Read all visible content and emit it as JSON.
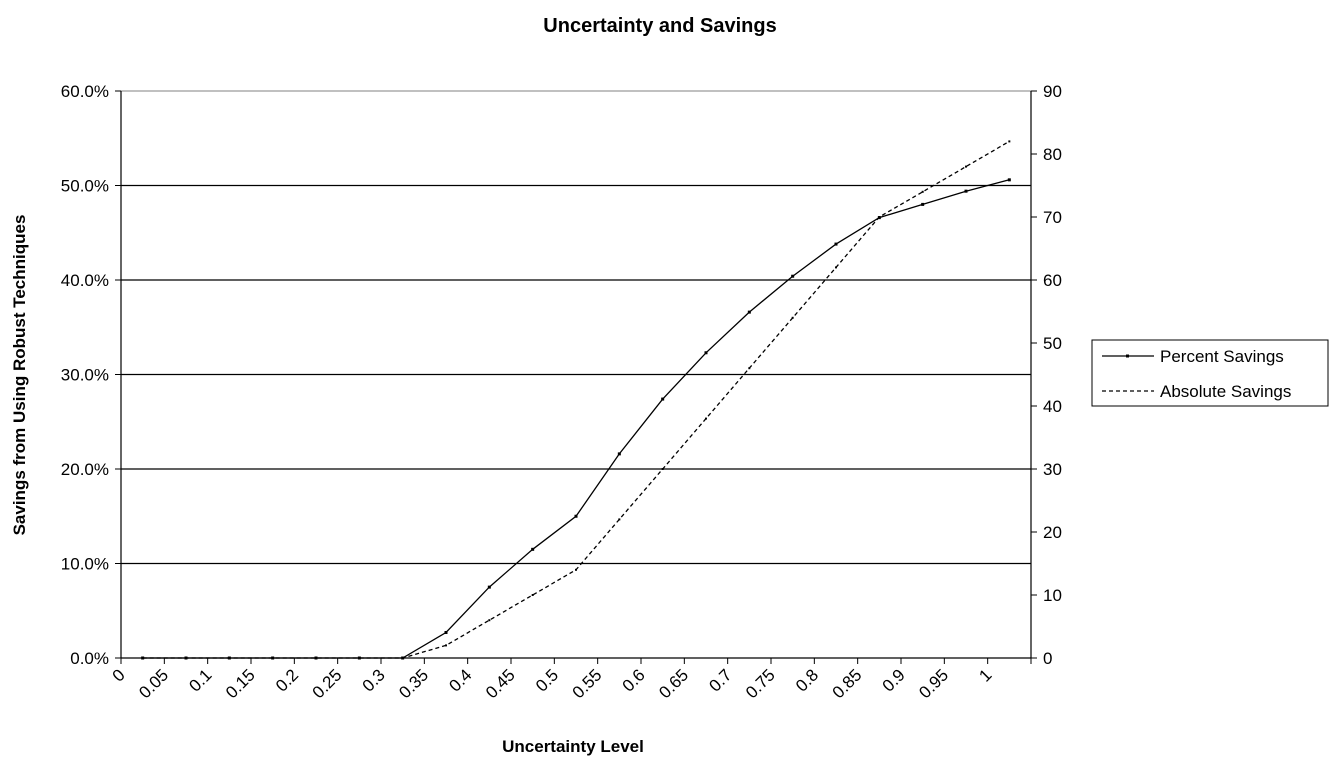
{
  "chart_data": {
    "type": "line",
    "title": "Uncertainty and Savings",
    "xlabel": "Uncertainty Level",
    "ylabel": "Savings from Using Robust Techniques",
    "x": [
      0.025,
      0.075,
      0.125,
      0.175,
      0.225,
      0.275,
      0.325,
      0.375,
      0.425,
      0.475,
      0.525,
      0.575,
      0.625,
      0.675,
      0.725,
      0.775,
      0.825,
      0.875,
      0.925,
      0.975,
      1.025
    ],
    "x_ticks": [
      "0",
      "0.05",
      "0.1",
      "0.15",
      "0.2",
      "0.25",
      "0.3",
      "0.35",
      "0.4",
      "0.45",
      "0.5",
      "0.55",
      "0.6",
      "0.65",
      "0.7",
      "0.75",
      "0.8",
      "0.85",
      "0.9",
      "0.95",
      "1"
    ],
    "y_left": {
      "ticks": [
        "0.0%",
        "10.0%",
        "20.0%",
        "30.0%",
        "40.0%",
        "50.0%",
        "60.0%"
      ],
      "ylim": [
        0,
        60
      ]
    },
    "y_right": {
      "ticks": [
        "0",
        "10",
        "20",
        "30",
        "40",
        "50",
        "60",
        "70",
        "80",
        "90"
      ],
      "ylim": [
        0,
        90
      ]
    },
    "grid": "horizontal",
    "legend_position": "right",
    "series": [
      {
        "name": "Percent Savings",
        "axis": "left",
        "style": "solid",
        "values": [
          0,
          0,
          0,
          0,
          0,
          0,
          0,
          2.7,
          7.5,
          11.5,
          15.0,
          21.6,
          27.4,
          32.3,
          36.6,
          40.4,
          43.8,
          46.6,
          48.0,
          49.4,
          50.6
        ]
      },
      {
        "name": "Absolute Savings",
        "axis": "right",
        "style": "dashed",
        "values": [
          0,
          0,
          0,
          0,
          0,
          0,
          0,
          2,
          6,
          10,
          14,
          22,
          30,
          38,
          46,
          54,
          62,
          70,
          74,
          78,
          82
        ]
      }
    ]
  }
}
